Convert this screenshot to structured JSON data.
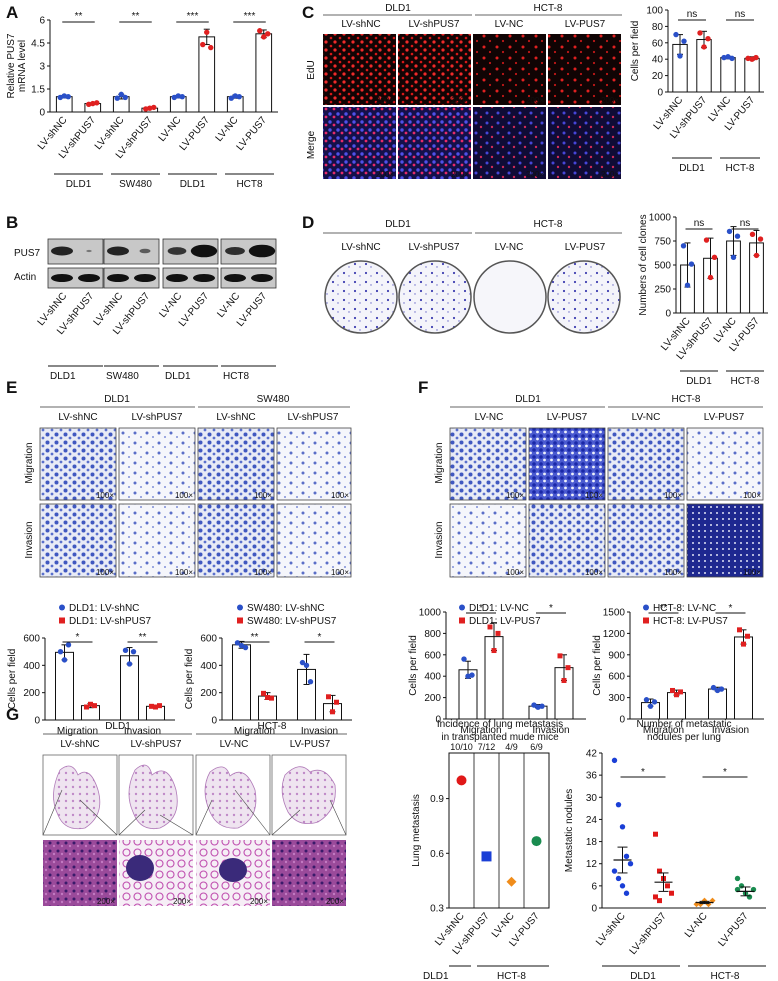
{
  "panels": {
    "A": "A",
    "B": "B",
    "C": "C",
    "D": "D",
    "E": "E",
    "F": "F",
    "G": "G"
  },
  "chart_data": [
    {
      "id": "A",
      "type": "bar",
      "ylabel": "Relative PUS7 mRNA level",
      "ylim": [
        0,
        6
      ],
      "yticks": [
        0,
        1.5,
        3,
        4.5,
        6
      ],
      "categories": [
        "LV-shNC",
        "LV-shPUS7",
        "LV-shNC",
        "LV-shPUS7",
        "LV-NC",
        "LV-PUS7",
        "LV-NC",
        "LV-PUS7"
      ],
      "values": [
        1.0,
        0.55,
        1.0,
        0.25,
        1.0,
        4.9,
        1.0,
        5.1
      ],
      "errors": [
        0.08,
        0.05,
        0.15,
        0.05,
        0.08,
        0.5,
        0.1,
        0.25
      ],
      "colors": [
        "#2a50c8",
        "#e02020",
        "#2a50c8",
        "#e02020",
        "#2a50c8",
        "#e02020",
        "#2a50c8",
        "#e02020"
      ],
      "points": [
        [
          0.95,
          1.05,
          1.0
        ],
        [
          0.5,
          0.55,
          0.6
        ],
        [
          0.9,
          1.15,
          0.95
        ],
        [
          0.2,
          0.25,
          0.3
        ],
        [
          0.95,
          1.05,
          1.0
        ],
        [
          4.4,
          5.2,
          4.2
        ],
        [
          0.9,
          1.05,
          1.0
        ],
        [
          5.3,
          4.9,
          5.1
        ]
      ],
      "groups": [
        "DLD1",
        "SW480",
        "DLD1",
        "HCT8"
      ],
      "sig": [
        {
          "i": 0,
          "j": 1,
          "label": "**"
        },
        {
          "i": 2,
          "j": 3,
          "label": "**"
        },
        {
          "i": 4,
          "j": 5,
          "label": "***"
        },
        {
          "i": 6,
          "j": 7,
          "label": "***"
        }
      ]
    },
    {
      "id": "C",
      "type": "bar",
      "ylabel": "Cells per field",
      "ylim": [
        0,
        100
      ],
      "yticks": [
        0,
        20,
        40,
        60,
        80,
        100
      ],
      "categories": [
        "LV-shNC",
        "LV-shPUS7",
        "LV-NC",
        "LV-PUS7"
      ],
      "values": [
        58,
        64,
        42,
        41
      ],
      "errors": [
        12,
        10,
        1.5,
        2
      ],
      "colors": [
        "#2a50c8",
        "#e02020",
        "#2a50c8",
        "#e02020"
      ],
      "points": [
        [
          70,
          44,
          62
        ],
        [
          72,
          55,
          65
        ],
        [
          42,
          43,
          41
        ],
        [
          41,
          40,
          42
        ]
      ],
      "groups": [
        "DLD1",
        "HCT-8"
      ],
      "sig": [
        {
          "i": 0,
          "j": 1,
          "label": "ns"
        },
        {
          "i": 2,
          "j": 3,
          "label": "ns"
        }
      ]
    },
    {
      "id": "D",
      "type": "bar",
      "ylabel": "Numbers of cell clones",
      "ylim": [
        0,
        1000
      ],
      "yticks": [
        0,
        250,
        500,
        750,
        1000
      ],
      "categories": [
        "LV-shNC",
        "LV-shPUS7",
        "LV-NC",
        "LV-PUS7"
      ],
      "values": [
        500,
        570,
        750,
        730
      ],
      "errors": [
        230,
        210,
        150,
        130
      ],
      "colors": [
        "#2a50c8",
        "#e02020",
        "#2a50c8",
        "#e02020"
      ],
      "points": [
        [
          700,
          290,
          510
        ],
        [
          760,
          370,
          580
        ],
        [
          850,
          580,
          800
        ],
        [
          820,
          600,
          770
        ]
      ],
      "groups": [
        "DLD1",
        "HCT-8"
      ],
      "sig": [
        {
          "i": 0,
          "j": 1,
          "label": "ns"
        },
        {
          "i": 2,
          "j": 3,
          "label": "ns"
        }
      ]
    },
    {
      "id": "E1",
      "type": "bar",
      "legend": [
        "DLD1: LV-shNC",
        "DLD1: LV-shPUS7"
      ],
      "ylabel": "Cells per field",
      "ylim": [
        0,
        600
      ],
      "yticks": [
        0,
        200,
        400,
        600
      ],
      "categories": [
        "Migration",
        "Invasion"
      ],
      "series": [
        {
          "name": "DLD1: LV-shNC",
          "color": "#2a50c8",
          "values": [
            495,
            470
          ],
          "errors": [
            55,
            60
          ],
          "points": [
            [
              500,
              440,
              550
            ],
            [
              510,
              410,
              500
            ]
          ]
        },
        {
          "name": "DLD1: LV-shPUS7",
          "color": "#e02020",
          "values": [
            105,
            100
          ],
          "errors": [
            15,
            8
          ],
          "points": [
            [
              95,
              115,
              105
            ],
            [
              100,
              95,
              105
            ]
          ]
        }
      ],
      "sig": [
        "*",
        "**"
      ]
    },
    {
      "id": "E2",
      "type": "bar",
      "legend": [
        "SW480: LV-shNC",
        "SW480: LV-shPUS7"
      ],
      "ylabel": "Cells per field",
      "ylim": [
        0,
        600
      ],
      "yticks": [
        0,
        200,
        400,
        600
      ],
      "categories": [
        "Migration",
        "Invasion"
      ],
      "series": [
        {
          "name": "SW480: LV-shNC",
          "color": "#2a50c8",
          "values": [
            550,
            370
          ],
          "errors": [
            25,
            110
          ],
          "points": [
            [
              565,
              545,
              530
            ],
            [
              420,
              400,
              280
            ]
          ]
        },
        {
          "name": "SW480: LV-shPUS7",
          "color": "#e02020",
          "values": [
            175,
            120
          ],
          "errors": [
            25,
            60
          ],
          "points": [
            [
              195,
              165,
              160
            ],
            [
              170,
              60,
              130
            ]
          ]
        }
      ],
      "sig": [
        "**",
        "*"
      ]
    },
    {
      "id": "F1",
      "type": "bar",
      "legend": [
        "DLD1: LV-NC",
        "DLD1: LV-PUS7"
      ],
      "ylabel": "Cells per field",
      "ylim": [
        0,
        1000
      ],
      "yticks": [
        0,
        200,
        400,
        600,
        800,
        1000
      ],
      "categories": [
        "Migration",
        "Invasion"
      ],
      "series": [
        {
          "name": "DLD1: LV-NC",
          "color": "#2a50c8",
          "values": [
            460,
            120
          ],
          "errors": [
            80,
            15
          ],
          "points": [
            [
              560,
              400,
              410
            ],
            [
              130,
              110,
              120
            ]
          ]
        },
        {
          "name": "DLD1: LV-PUS7",
          "color": "#e02020",
          "values": [
            770,
            480
          ],
          "errors": [
            130,
            120
          ],
          "points": [
            [
              860,
              640,
              800
            ],
            [
              590,
              360,
              480
            ]
          ]
        }
      ],
      "sig": [
        "*",
        "*"
      ]
    },
    {
      "id": "F2",
      "type": "bar",
      "legend": [
        "HCT-8: LV-NC",
        "HCT-8: LV-PUS7"
      ],
      "ylabel": "Cells per field",
      "ylim": [
        0,
        1500
      ],
      "yticks": [
        0,
        300,
        600,
        900,
        1200,
        1500
      ],
      "categories": [
        "Migration",
        "Invasion"
      ],
      "series": [
        {
          "name": "HCT-8: LV-NC",
          "color": "#2a50c8",
          "values": [
            230,
            420
          ],
          "errors": [
            50,
            25
          ],
          "points": [
            [
              270,
              180,
              240
            ],
            [
              440,
              400,
              420
            ]
          ]
        },
        {
          "name": "HCT-8: LV-PUS7",
          "color": "#e02020",
          "values": [
            370,
            1150
          ],
          "errors": [
            35,
            100
          ],
          "points": [
            [
              400,
              340,
              380
            ],
            [
              1250,
              1050,
              1160
            ]
          ]
        }
      ],
      "sig": [
        "**",
        "*"
      ]
    },
    {
      "id": "G1",
      "type": "scatter",
      "title": "Incidence of lung metastasis in transplanted mude mice",
      "ylabel": "Lung metastasis",
      "ylim": [
        0.3,
        1.15
      ],
      "yticks": [
        0.3,
        0.6,
        0.9
      ],
      "categories": [
        "LV-shNC",
        "LV-shPUS7",
        "LV-NC",
        "LV-PUS7"
      ],
      "values": [
        1.0,
        0.583,
        0.444,
        0.667
      ],
      "labels": [
        "10/10",
        "7/12",
        "4/9",
        "6/9"
      ],
      "colors": [
        "#e01818",
        "#1a3fd6",
        "#f08c1a",
        "#1a8c50"
      ],
      "shapes": [
        "circle",
        "square",
        "diamond",
        "circle"
      ],
      "groups": [
        "DLD1",
        "HCT-8"
      ]
    },
    {
      "id": "G2",
      "type": "scatter",
      "title": "Number of metastatic nodules per lung",
      "ylabel": "Metastatic nodules",
      "ylim": [
        0,
        42
      ],
      "yticks": [
        0,
        6,
        12,
        18,
        24,
        30,
        36,
        42
      ],
      "categories": [
        "LV-shNC",
        "LV-shPUS7",
        "LV-NC",
        "LV-PUS7"
      ],
      "means": [
        13,
        7,
        1.5,
        4.5
      ],
      "sems": [
        3.5,
        2.5,
        0.3,
        1.2
      ],
      "points": [
        [
          40,
          28,
          22,
          14,
          12,
          10,
          8,
          6,
          4
        ],
        [
          20,
          10,
          8,
          6,
          4,
          3,
          2
        ],
        [
          1,
          1,
          2,
          1,
          2
        ],
        [
          8,
          6,
          4,
          3,
          5,
          5
        ]
      ],
      "colors": [
        "#1a3fd6",
        "#e01818",
        "#f08c1a",
        "#1a8c50"
      ],
      "groups": [
        "DLD1",
        "HCT-8"
      ],
      "sig": [
        {
          "i": 0,
          "j": 1,
          "label": "*"
        },
        {
          "i": 2,
          "j": 3,
          "label": "*"
        }
      ]
    }
  ],
  "labels": {
    "b_rows": [
      "PUS7",
      "Actin"
    ],
    "b_lanes": [
      "LV-shNC",
      "LV-shPUS7",
      "LV-shNC",
      "LV-shPUS7",
      "LV-NC",
      "LV-PUS7",
      "LV-NC",
      "LV-PUS7"
    ],
    "b_groups": [
      "DLD1",
      "SW480",
      "DLD1",
      "HCT8"
    ],
    "c_cells": [
      "DLD1",
      "HCT-8"
    ],
    "c_lanes": [
      "LV-shNC",
      "LV-shPUS7",
      "LV-NC",
      "LV-PUS7"
    ],
    "c_rows": [
      "EdU",
      "Merge"
    ],
    "mag200": "200×",
    "d_cells": [
      "DLD1",
      "HCT-8"
    ],
    "d_lanes": [
      "LV-shNC",
      "LV-shPUS7",
      "LV-NC",
      "LV-PUS7"
    ],
    "e_cells": [
      "DLD1",
      "SW480"
    ],
    "e_lanes": [
      "LV-shNC",
      "LV-shPUS7",
      "LV-shNC",
      "LV-shPUS7"
    ],
    "f_cells": [
      "DLD1",
      "HCT-8"
    ],
    "f_lanes": [
      "LV-NC",
      "LV-PUS7",
      "LV-NC",
      "LV-PUS7"
    ],
    "mig_rows": [
      "Migration",
      "Invasion"
    ],
    "mag100": "100×",
    "g_cells": [
      "DLD1",
      "HCT-8"
    ],
    "g_lanes": [
      "LV-shNC",
      "LV-shPUS7",
      "LV-NC",
      "LV-PUS7"
    ]
  }
}
